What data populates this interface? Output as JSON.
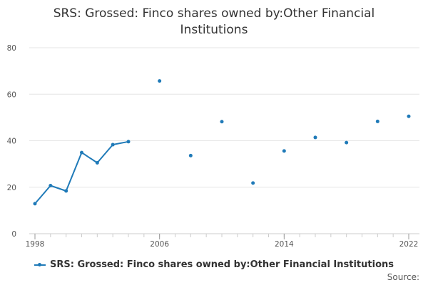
{
  "chart_data": {
    "type": "line",
    "title_lines": [
      "SRS: Grossed: Finco shares owned by:Other Financial",
      "Institutions"
    ],
    "xlabel": "",
    "ylabel": "",
    "x_ticks": [
      1998,
      2006,
      2014,
      2022
    ],
    "y_ticks": [
      0,
      20,
      40,
      60,
      80
    ],
    "xlim": [
      1998,
      2022
    ],
    "ylim": [
      0,
      80
    ],
    "grid": "horizontal",
    "legend_placement": "bottom",
    "series": [
      {
        "name": "SRS: Grossed: Finco shares owned by:Other Financial Institutions",
        "color": "#1f7ab8",
        "points": [
          {
            "x": 1998,
            "y": 12.9
          },
          {
            "x": 1999,
            "y": 20.7
          },
          {
            "x": 2000,
            "y": 18.4
          },
          {
            "x": 2001,
            "y": 34.9
          },
          {
            "x": 2002,
            "y": 30.5
          },
          {
            "x": 2003,
            "y": 38.3
          },
          {
            "x": 2004,
            "y": 39.6
          },
          {
            "x": 2006,
            "y": 65.7
          },
          {
            "x": 2008,
            "y": 33.6
          },
          {
            "x": 2010,
            "y": 48.2
          },
          {
            "x": 2012,
            "y": 21.8
          },
          {
            "x": 2014,
            "y": 35.6
          },
          {
            "x": 2016,
            "y": 41.4
          },
          {
            "x": 2018,
            "y": 39.2
          },
          {
            "x": 2020,
            "y": 48.3
          },
          {
            "x": 2022,
            "y": 50.5
          }
        ]
      }
    ]
  },
  "legend": {
    "label": "SRS: Grossed: Finco shares owned by:Other Financial Institutions"
  },
  "source_label": "Source:"
}
